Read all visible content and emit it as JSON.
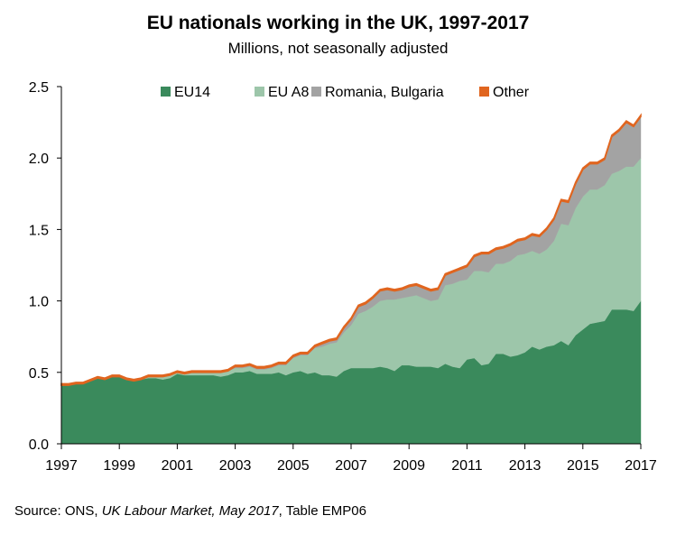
{
  "chart_data": {
    "type": "area",
    "title": "EU nationals working in the UK, 1997-2017",
    "subtitle": "Millions, not seasonally adjusted",
    "xlabel": "",
    "ylabel": "",
    "xlim": [
      1997,
      2017
    ],
    "ylim": [
      0,
      2.5
    ],
    "x_ticks": [
      "1997",
      "1999",
      "2001",
      "2003",
      "2005",
      "2007",
      "2009",
      "2011",
      "2013",
      "2015",
      "2017"
    ],
    "y_ticks": [
      "0.0",
      "0.5",
      "1.0",
      "1.5",
      "2.0",
      "2.5"
    ],
    "grid": false,
    "stacked": true,
    "legend_position": "top",
    "x": [
      1997.0,
      1997.25,
      1997.5,
      1997.75,
      1998.0,
      1998.25,
      1998.5,
      1998.75,
      1999.0,
      1999.25,
      1999.5,
      1999.75,
      2000.0,
      2000.25,
      2000.5,
      2000.75,
      2001.0,
      2001.25,
      2001.5,
      2001.75,
      2002.0,
      2002.25,
      2002.5,
      2002.75,
      2003.0,
      2003.25,
      2003.5,
      2003.75,
      2004.0,
      2004.25,
      2004.5,
      2004.75,
      2005.0,
      2005.25,
      2005.5,
      2005.75,
      2006.0,
      2006.25,
      2006.5,
      2006.75,
      2007.0,
      2007.25,
      2007.5,
      2007.75,
      2008.0,
      2008.25,
      2008.5,
      2008.75,
      2009.0,
      2009.25,
      2009.5,
      2009.75,
      2010.0,
      2010.25,
      2010.5,
      2010.75,
      2011.0,
      2011.25,
      2011.5,
      2011.75,
      2012.0,
      2012.25,
      2012.5,
      2012.75,
      2013.0,
      2013.25,
      2013.5,
      2013.75,
      2014.0,
      2014.25,
      2014.5,
      2014.75,
      2015.0,
      2015.25,
      2015.5,
      2015.75,
      2016.0,
      2016.25,
      2016.5,
      2016.75,
      2017.0
    ],
    "series": [
      {
        "name": "EU14",
        "color": "#3a8a5c",
        "values": [
          0.41,
          0.41,
          0.42,
          0.42,
          0.44,
          0.46,
          0.45,
          0.47,
          0.47,
          0.45,
          0.44,
          0.45,
          0.46,
          0.46,
          0.45,
          0.46,
          0.49,
          0.48,
          0.48,
          0.48,
          0.48,
          0.48,
          0.47,
          0.48,
          0.5,
          0.5,
          0.51,
          0.49,
          0.49,
          0.49,
          0.5,
          0.48,
          0.5,
          0.51,
          0.49,
          0.5,
          0.48,
          0.48,
          0.47,
          0.51,
          0.53,
          0.53,
          0.53,
          0.53,
          0.54,
          0.53,
          0.51,
          0.55,
          0.55,
          0.54,
          0.54,
          0.54,
          0.53,
          0.56,
          0.54,
          0.53,
          0.59,
          0.6,
          0.55,
          0.56,
          0.63,
          0.63,
          0.61,
          0.62,
          0.64,
          0.68,
          0.66,
          0.68,
          0.69,
          0.72,
          0.69,
          0.76,
          0.8,
          0.84,
          0.85,
          0.86,
          0.94,
          0.94,
          0.94,
          0.93,
          1.0
        ]
      },
      {
        "name": "EU A8",
        "color": "#9dc6aa",
        "values": [
          0.0,
          0.0,
          0.0,
          0.0,
          0.0,
          0.0,
          0.0,
          0.0,
          0.0,
          0.0,
          0.0,
          0.0,
          0.01,
          0.01,
          0.02,
          0.02,
          0.01,
          0.01,
          0.02,
          0.02,
          0.02,
          0.02,
          0.03,
          0.03,
          0.03,
          0.03,
          0.03,
          0.03,
          0.03,
          0.04,
          0.05,
          0.07,
          0.1,
          0.11,
          0.13,
          0.17,
          0.2,
          0.22,
          0.24,
          0.27,
          0.3,
          0.38,
          0.4,
          0.43,
          0.46,
          0.48,
          0.5,
          0.47,
          0.48,
          0.5,
          0.48,
          0.46,
          0.48,
          0.55,
          0.58,
          0.61,
          0.56,
          0.61,
          0.66,
          0.64,
          0.63,
          0.63,
          0.67,
          0.7,
          0.69,
          0.67,
          0.67,
          0.68,
          0.73,
          0.82,
          0.84,
          0.89,
          0.93,
          0.94,
          0.93,
          0.95,
          0.95,
          0.97,
          1.0,
          1.01,
          1.0
        ]
      },
      {
        "name": "Romania, Bulgaria",
        "color": "#a3a3a3",
        "values": [
          0.0,
          0.0,
          0.0,
          0.0,
          0.0,
          0.0,
          0.0,
          0.0,
          0.0,
          0.0,
          0.0,
          0.0,
          0.0,
          0.0,
          0.0,
          0.0,
          0.0,
          0.0,
          0.0,
          0.0,
          0.0,
          0.0,
          0.0,
          0.0,
          0.01,
          0.01,
          0.01,
          0.01,
          0.01,
          0.01,
          0.01,
          0.01,
          0.01,
          0.01,
          0.01,
          0.01,
          0.02,
          0.02,
          0.02,
          0.03,
          0.04,
          0.05,
          0.05,
          0.06,
          0.07,
          0.07,
          0.06,
          0.06,
          0.07,
          0.07,
          0.07,
          0.07,
          0.07,
          0.07,
          0.08,
          0.08,
          0.09,
          0.1,
          0.12,
          0.13,
          0.1,
          0.11,
          0.11,
          0.1,
          0.1,
          0.11,
          0.12,
          0.14,
          0.15,
          0.16,
          0.16,
          0.17,
          0.19,
          0.18,
          0.18,
          0.18,
          0.26,
          0.28,
          0.31,
          0.28,
          0.29
        ]
      },
      {
        "name": "Other",
        "color": "#e0651f",
        "values": [
          0.01,
          0.01,
          0.01,
          0.01,
          0.01,
          0.01,
          0.01,
          0.01,
          0.01,
          0.01,
          0.01,
          0.01,
          0.01,
          0.01,
          0.01,
          0.01,
          0.01,
          0.01,
          0.01,
          0.01,
          0.01,
          0.01,
          0.01,
          0.01,
          0.01,
          0.01,
          0.01,
          0.01,
          0.01,
          0.01,
          0.01,
          0.01,
          0.01,
          0.01,
          0.01,
          0.01,
          0.01,
          0.01,
          0.01,
          0.01,
          0.01,
          0.01,
          0.01,
          0.01,
          0.01,
          0.01,
          0.01,
          0.01,
          0.01,
          0.01,
          0.01,
          0.01,
          0.01,
          0.01,
          0.01,
          0.01,
          0.01,
          0.01,
          0.01,
          0.01,
          0.01,
          0.01,
          0.01,
          0.01,
          0.01,
          0.01,
          0.01,
          0.01,
          0.01,
          0.01,
          0.01,
          0.01,
          0.01,
          0.01,
          0.01,
          0.01,
          0.01,
          0.01,
          0.01,
          0.01,
          0.01
        ]
      }
    ]
  },
  "source": {
    "prefix": "Source: ONS, ",
    "publication": "UK Labour Market, May 2017",
    "suffix": ", Table EMP06"
  }
}
